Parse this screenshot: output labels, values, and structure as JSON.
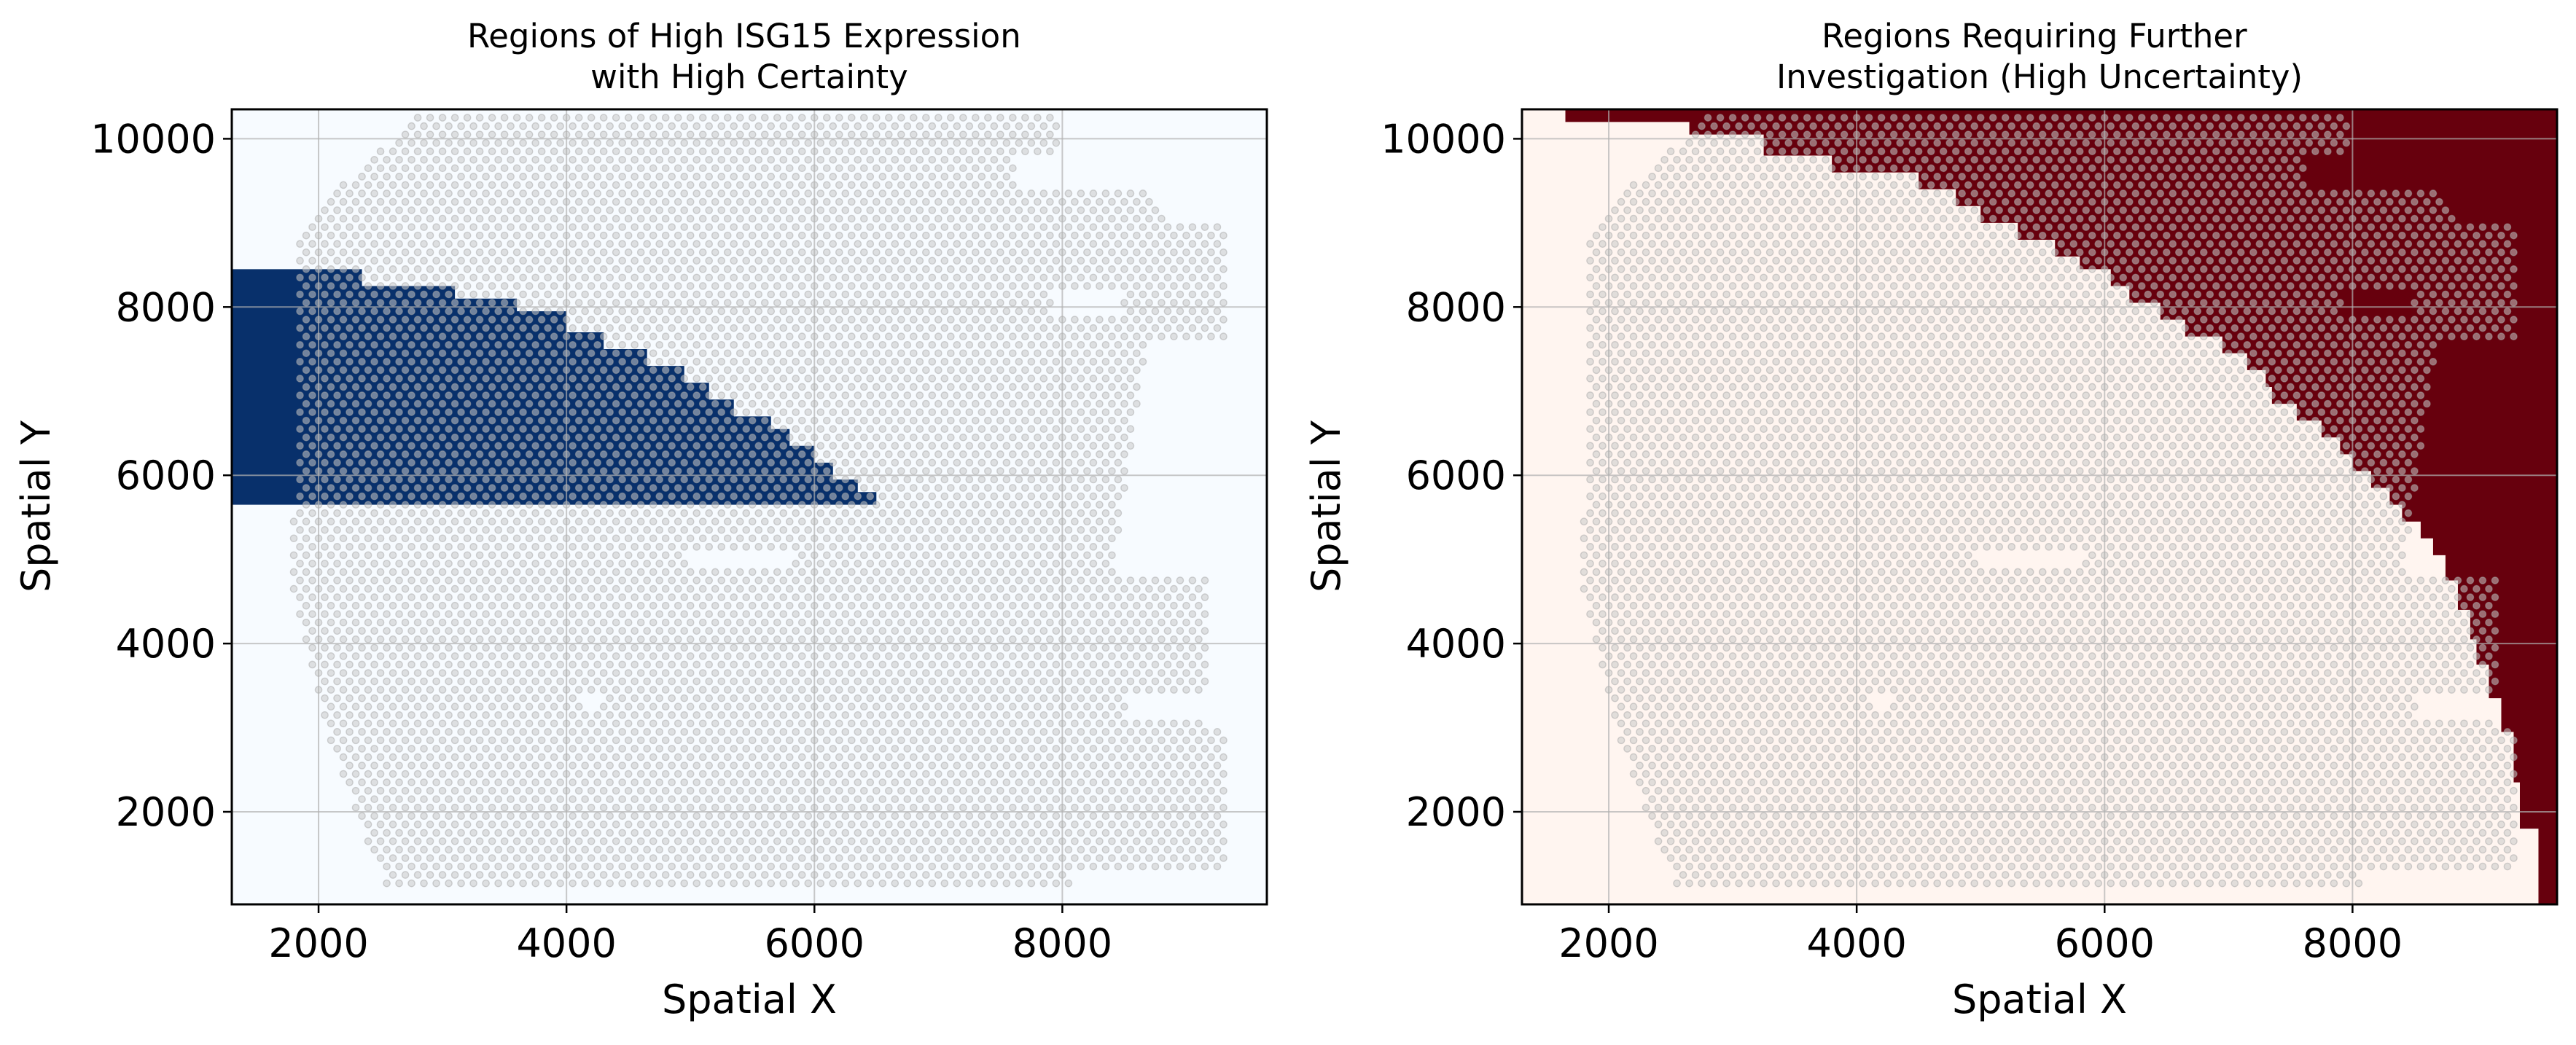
{
  "chart_data": [
    {
      "type": "heatmap",
      "title": "Regions of High ISG15 Expression\nwith High Certainty",
      "xlabel": "Spatial X",
      "ylabel": "Spatial Y",
      "xlim": [
        1300,
        9650
      ],
      "ylim": [
        900,
        10350
      ],
      "xticks": [
        2000,
        4000,
        6000,
        8000
      ],
      "yticks": [
        2000,
        4000,
        6000,
        8000,
        10000
      ],
      "grid": true,
      "colormap": "Blues",
      "colors": {
        "background": "#f7fbff",
        "region": "#08306b",
        "spots": "#c8c8c8"
      },
      "region": {
        "label": "high ISG15, high certainty",
        "y_bottom": 5650,
        "steps": [
          {
            "x": 1300,
            "y_top": 8450
          },
          {
            "x": 2350,
            "y_top": 8250
          },
          {
            "x": 3100,
            "y_top": 8100
          },
          {
            "x": 3600,
            "y_top": 7950
          },
          {
            "x": 4000,
            "y_top": 7700
          },
          {
            "x": 4300,
            "y_top": 7500
          },
          {
            "x": 4650,
            "y_top": 7300
          },
          {
            "x": 4950,
            "y_top": 7100
          },
          {
            "x": 5150,
            "y_top": 6900
          },
          {
            "x": 5350,
            "y_top": 6700
          },
          {
            "x": 5650,
            "y_top": 6550
          },
          {
            "x": 5800,
            "y_top": 6350
          },
          {
            "x": 6000,
            "y_top": 6150
          },
          {
            "x": 6150,
            "y_top": 5950
          },
          {
            "x": 6350,
            "y_top": 5800
          },
          {
            "x": 6500,
            "y_top": 5650
          }
        ]
      }
    },
    {
      "type": "heatmap",
      "title": "Regions Requiring Further\nInvestigation (High Uncertainty)",
      "xlabel": "Spatial X",
      "ylabel": "Spatial Y",
      "xlim": [
        1300,
        9650
      ],
      "ylim": [
        900,
        10350
      ],
      "xticks": [
        2000,
        4000,
        6000,
        8000
      ],
      "yticks": [
        2000,
        4000,
        6000,
        8000,
        10000
      ],
      "grid": true,
      "colormap": "Reds",
      "colors": {
        "background": "#fff5f0",
        "region": "#67000d",
        "spots": "#c8c8c8"
      },
      "region": {
        "label": "high uncertainty",
        "boundary": [
          [
            1650,
            10350
          ],
          [
            1650,
            10200
          ],
          [
            2650,
            10200
          ],
          [
            2650,
            10050
          ],
          [
            3250,
            10050
          ],
          [
            3250,
            9800
          ],
          [
            3800,
            9800
          ],
          [
            3800,
            9600
          ],
          [
            4500,
            9600
          ],
          [
            4500,
            9400
          ],
          [
            4800,
            9400
          ],
          [
            4800,
            9200
          ],
          [
            5000,
            9200
          ],
          [
            5000,
            9000
          ],
          [
            5300,
            9000
          ],
          [
            5300,
            8800
          ],
          [
            5600,
            8800
          ],
          [
            5600,
            8600
          ],
          [
            5800,
            8600
          ],
          [
            5800,
            8450
          ],
          [
            6050,
            8450
          ],
          [
            6050,
            8250
          ],
          [
            6200,
            8250
          ],
          [
            6200,
            8050
          ],
          [
            6450,
            8050
          ],
          [
            6450,
            7850
          ],
          [
            6650,
            7850
          ],
          [
            6650,
            7650
          ],
          [
            6950,
            7650
          ],
          [
            6950,
            7450
          ],
          [
            7150,
            7450
          ],
          [
            7150,
            7250
          ],
          [
            7300,
            7250
          ],
          [
            7300,
            7050
          ],
          [
            7350,
            7050
          ],
          [
            7350,
            6850
          ],
          [
            7550,
            6850
          ],
          [
            7550,
            6650
          ],
          [
            7750,
            6650
          ],
          [
            7750,
            6450
          ],
          [
            7900,
            6450
          ],
          [
            7900,
            6250
          ],
          [
            8000,
            6250
          ],
          [
            8000,
            6050
          ],
          [
            8150,
            6050
          ],
          [
            8150,
            5850
          ],
          [
            8300,
            5850
          ],
          [
            8300,
            5650
          ],
          [
            8400,
            5650
          ],
          [
            8400,
            5450
          ],
          [
            8550,
            5450
          ],
          [
            8550,
            5250
          ],
          [
            8650,
            5250
          ],
          [
            8650,
            5050
          ],
          [
            8750,
            5050
          ],
          [
            8750,
            4750
          ],
          [
            8850,
            4750
          ],
          [
            8850,
            4400
          ],
          [
            8950,
            4400
          ],
          [
            8950,
            4050
          ],
          [
            9000,
            4050
          ],
          [
            9000,
            3750
          ],
          [
            9100,
            3750
          ],
          [
            9100,
            3350
          ],
          [
            9200,
            3350
          ],
          [
            9200,
            2950
          ],
          [
            9300,
            2950
          ],
          [
            9300,
            2350
          ],
          [
            9350,
            2350
          ],
          [
            9350,
            1800
          ],
          [
            9500,
            1800
          ],
          [
            9500,
            900
          ],
          [
            9650,
            900
          ],
          [
            9650,
            10350
          ]
        ]
      }
    }
  ],
  "spot_overlay": {
    "description": "semi-transparent grey tissue spots overlaid on both panels",
    "shape": "hex-grid",
    "spacing_x": 100,
    "spacing_y": 100
  }
}
